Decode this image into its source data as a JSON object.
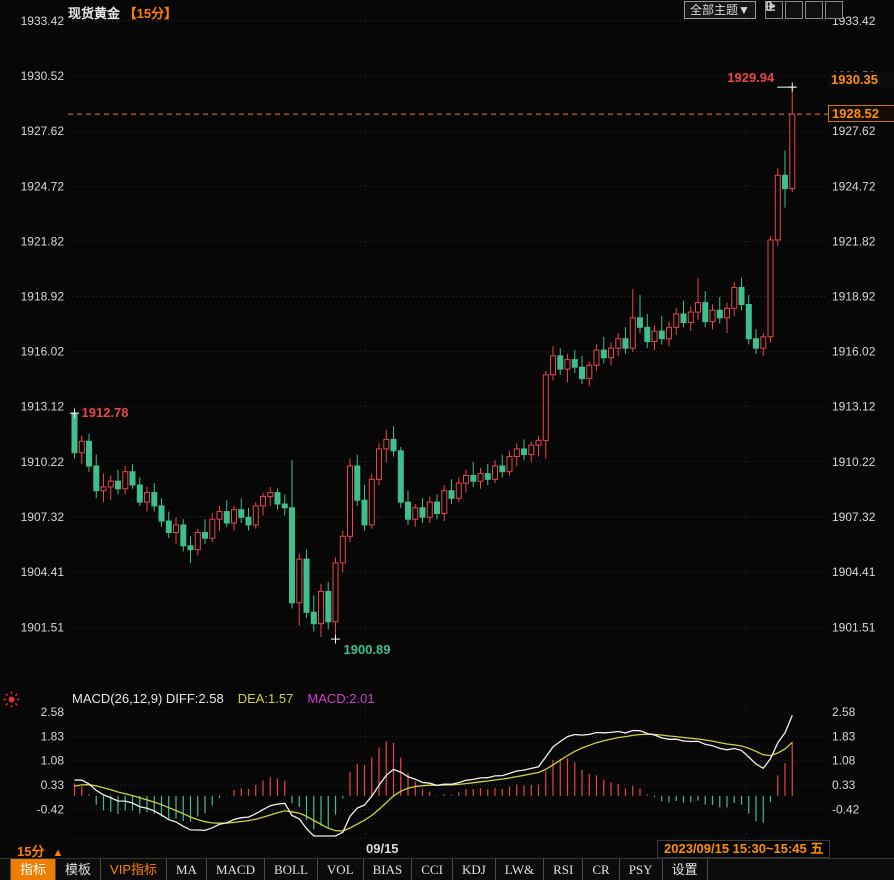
{
  "header": {
    "title": "现货黄金",
    "period_tag": "【15分】",
    "theme_button": "全部主题▼",
    "window_icons": [
      "move-crosshair-icon",
      "pane-axis-up-icon",
      "pane-axis-play-icon",
      "pane-exit-icon"
    ]
  },
  "price_axis": {
    "labels": [
      "1933.42",
      "1930.52",
      "1927.62",
      "1924.72",
      "1921.82",
      "1918.92",
      "1916.02",
      "1913.12",
      "1910.22",
      "1907.32",
      "1904.41",
      "1901.51"
    ]
  },
  "macd_axis": {
    "labels": [
      "2.58",
      "1.83",
      "1.08",
      "0.33",
      "-0.42"
    ]
  },
  "markers": {
    "price_marker": "1930.35",
    "last_price": "1928.52",
    "last_price_value": 1928.52
  },
  "annotations": {
    "open_label": "1912.78",
    "open_value": 1912.78,
    "low_label": "1900.89",
    "low_value": 1900.89,
    "high_label": "1929.94",
    "high_value": 1929.94
  },
  "macd_header": {
    "params_and_diff": "MACD(26,12,9) DIFF:2.58",
    "dea": "DEA:1.57",
    "macd": "MACD:2.01"
  },
  "footer": {
    "period": "15分",
    "arrow": "▲",
    "session_label": "09/15",
    "range": "2023/09/15 15:30~15:45 五"
  },
  "toolbar": {
    "tabs": [
      {
        "label": "指标",
        "style": "active"
      },
      {
        "label": "模板",
        "style": ""
      },
      {
        "label": "VIP指标",
        "style": "vip"
      },
      {
        "label": "MA",
        "style": ""
      },
      {
        "label": "MACD",
        "style": ""
      },
      {
        "label": "BOLL",
        "style": ""
      },
      {
        "label": "VOL",
        "style": ""
      },
      {
        "label": "BIAS",
        "style": ""
      },
      {
        "label": "CCI",
        "style": ""
      },
      {
        "label": "KDJ",
        "style": ""
      },
      {
        "label": "LW&",
        "style": ""
      },
      {
        "label": "RSI",
        "style": ""
      },
      {
        "label": "CR",
        "style": ""
      },
      {
        "label": "PSY",
        "style": ""
      },
      {
        "label": "设置",
        "style": ""
      }
    ]
  },
  "colors": {
    "up": "#e8464b",
    "down": "#3fbf8e",
    "accent": "#ff8200",
    "dashed_line": "#e88a00",
    "diff_line": "#f0f0f0",
    "dea_line": "#cdd13f",
    "macd_value": "#d23fd2",
    "grid": "#3d3d3d",
    "axis_text": "#d8d8d8",
    "background": "#070707"
  },
  "chart_data": {
    "type": "candlestick+macd",
    "symbol": "现货黄金",
    "interval": "15分",
    "x_session_label": "09/15",
    "price_axis_top": 1933.42,
    "price_axis_step": 2.9,
    "macd_axis_top": 2.58,
    "macd_axis_step": 0.75,
    "macd_summary": {
      "diff": 2.58,
      "dea": 1.57,
      "macd": 2.01
    },
    "open": 1912.78,
    "high": 1929.94,
    "low": 1900.89,
    "last": 1928.52,
    "session_lines_x": [
      365,
      747
    ],
    "candles": [
      [
        1912.78,
        1912.9,
        1910.4,
        1910.7
      ],
      [
        1910.7,
        1911.6,
        1910.1,
        1911.3
      ],
      [
        1911.3,
        1911.7,
        1909.7,
        1910.0
      ],
      [
        1910.0,
        1910.6,
        1908.3,
        1908.7
      ],
      [
        1908.7,
        1909.6,
        1908.1,
        1908.9
      ],
      [
        1908.9,
        1909.5,
        1908.2,
        1909.2
      ],
      [
        1909.2,
        1909.8,
        1908.5,
        1908.8
      ],
      [
        1908.8,
        1910.0,
        1908.5,
        1909.7
      ],
      [
        1909.7,
        1910.1,
        1908.8,
        1909.0
      ],
      [
        1909.0,
        1909.4,
        1907.9,
        1908.1
      ],
      [
        1908.1,
        1908.9,
        1907.6,
        1908.6
      ],
      [
        1908.6,
        1909.1,
        1907.6,
        1907.9
      ],
      [
        1907.9,
        1908.3,
        1906.8,
        1907.1
      ],
      [
        1907.1,
        1907.6,
        1906.2,
        1906.5
      ],
      [
        1906.5,
        1907.3,
        1905.9,
        1906.9
      ],
      [
        1906.9,
        1907.2,
        1905.5,
        1905.8
      ],
      [
        1905.8,
        1906.3,
        1904.9,
        1905.6
      ],
      [
        1905.6,
        1906.7,
        1905.3,
        1906.5
      ],
      [
        1906.5,
        1907.2,
        1905.9,
        1906.2
      ],
      [
        1906.2,
        1907.5,
        1906.0,
        1907.2
      ],
      [
        1907.2,
        1907.9,
        1906.6,
        1907.6
      ],
      [
        1907.6,
        1908.2,
        1906.8,
        1907.0
      ],
      [
        1907.0,
        1907.9,
        1906.6,
        1907.7
      ],
      [
        1907.7,
        1908.3,
        1907.0,
        1907.3
      ],
      [
        1907.3,
        1907.8,
        1906.6,
        1906.9
      ],
      [
        1906.9,
        1908.1,
        1906.7,
        1907.9
      ],
      [
        1907.9,
        1908.6,
        1907.4,
        1908.4
      ],
      [
        1908.4,
        1908.9,
        1907.9,
        1908.6
      ],
      [
        1908.6,
        1908.8,
        1907.7,
        1908.0
      ],
      [
        1908.0,
        1908.5,
        1907.4,
        1907.8
      ],
      [
        1907.8,
        1910.3,
        1902.5,
        1902.8
      ],
      [
        1902.8,
        1905.4,
        1901.6,
        1905.1
      ],
      [
        1905.1,
        1905.6,
        1902.0,
        1902.3
      ],
      [
        1902.3,
        1903.2,
        1901.3,
        1901.7
      ],
      [
        1901.7,
        1903.8,
        1901.0,
        1903.4
      ],
      [
        1903.4,
        1903.9,
        1901.4,
        1901.8
      ],
      [
        1901.8,
        1905.2,
        1900.89,
        1904.9
      ],
      [
        1904.9,
        1906.6,
        1904.4,
        1906.3
      ],
      [
        1906.3,
        1910.4,
        1906.0,
        1910.0
      ],
      [
        1910.0,
        1910.6,
        1907.9,
        1908.2
      ],
      [
        1908.2,
        1909.0,
        1906.6,
        1906.9
      ],
      [
        1906.9,
        1909.6,
        1906.7,
        1909.3
      ],
      [
        1909.3,
        1911.2,
        1909.0,
        1910.9
      ],
      [
        1910.9,
        1911.9,
        1910.2,
        1911.4
      ],
      [
        1911.4,
        1912.1,
        1910.5,
        1910.8
      ],
      [
        1910.8,
        1911.0,
        1907.8,
        1908.1
      ],
      [
        1908.1,
        1908.7,
        1906.9,
        1907.2
      ],
      [
        1907.2,
        1908.0,
        1906.8,
        1907.8
      ],
      [
        1907.8,
        1908.3,
        1907.0,
        1907.3
      ],
      [
        1907.3,
        1908.4,
        1907.0,
        1908.1
      ],
      [
        1908.1,
        1908.5,
        1907.2,
        1907.5
      ],
      [
        1907.5,
        1909.0,
        1907.1,
        1908.7
      ],
      [
        1908.7,
        1909.3,
        1908.0,
        1908.3
      ],
      [
        1908.3,
        1909.4,
        1908.1,
        1909.1
      ],
      [
        1909.1,
        1909.8,
        1908.6,
        1909.5
      ],
      [
        1909.5,
        1910.2,
        1908.9,
        1909.2
      ],
      [
        1909.2,
        1909.9,
        1908.8,
        1909.6
      ],
      [
        1909.6,
        1910.1,
        1909.0,
        1909.3
      ],
      [
        1909.3,
        1910.3,
        1909.1,
        1910.0
      ],
      [
        1910.0,
        1910.6,
        1909.4,
        1909.7
      ],
      [
        1909.7,
        1910.8,
        1909.5,
        1910.5
      ],
      [
        1910.5,
        1911.2,
        1910.0,
        1910.9
      ],
      [
        1910.9,
        1911.4,
        1910.3,
        1910.6
      ],
      [
        1910.6,
        1911.3,
        1910.2,
        1911.1
      ],
      [
        1911.1,
        1911.6,
        1910.5,
        1911.35
      ],
      [
        1911.35,
        1915.0,
        1910.4,
        1914.8
      ],
      [
        1914.8,
        1916.3,
        1914.5,
        1915.8
      ],
      [
        1915.8,
        1916.2,
        1914.8,
        1915.1
      ],
      [
        1915.1,
        1915.9,
        1914.4,
        1915.6
      ],
      [
        1915.6,
        1916.1,
        1914.9,
        1915.2
      ],
      [
        1915.2,
        1915.8,
        1914.3,
        1914.6
      ],
      [
        1914.6,
        1915.5,
        1914.2,
        1915.3
      ],
      [
        1915.3,
        1916.4,
        1915.0,
        1916.1
      ],
      [
        1916.1,
        1916.8,
        1915.4,
        1915.7
      ],
      [
        1915.7,
        1916.5,
        1915.3,
        1916.2
      ],
      [
        1916.2,
        1917.0,
        1915.8,
        1916.7
      ],
      [
        1916.7,
        1917.3,
        1915.9,
        1916.2
      ],
      [
        1916.2,
        1919.3,
        1916.0,
        1917.8
      ],
      [
        1917.8,
        1919.0,
        1917.0,
        1917.3
      ],
      [
        1917.3,
        1918.0,
        1916.2,
        1916.55
      ],
      [
        1916.55,
        1917.4,
        1916.1,
        1917.1
      ],
      [
        1917.1,
        1917.9,
        1916.4,
        1916.7
      ],
      [
        1916.7,
        1917.6,
        1916.3,
        1917.3
      ],
      [
        1917.3,
        1918.3,
        1916.9,
        1918.0
      ],
      [
        1918.0,
        1918.7,
        1917.3,
        1917.55
      ],
      [
        1917.55,
        1918.4,
        1917.1,
        1918.1
      ],
      [
        1918.1,
        1919.9,
        1917.7,
        1918.6
      ],
      [
        1918.6,
        1919.2,
        1917.3,
        1917.6
      ],
      [
        1917.6,
        1918.5,
        1917.2,
        1918.2
      ],
      [
        1918.2,
        1918.9,
        1917.5,
        1917.8
      ],
      [
        1917.8,
        1918.6,
        1917.0,
        1918.3
      ],
      [
        1918.3,
        1919.7,
        1917.9,
        1919.4
      ],
      [
        1919.4,
        1919.9,
        1918.2,
        1918.5
      ],
      [
        1918.5,
        1919.0,
        1916.4,
        1916.7
      ],
      [
        1916.7,
        1917.2,
        1915.9,
        1916.2
      ],
      [
        1916.2,
        1917.0,
        1915.8,
        1916.8
      ],
      [
        1916.8,
        1922.1,
        1916.5,
        1921.9
      ],
      [
        1921.9,
        1925.7,
        1921.6,
        1925.3
      ],
      [
        1925.3,
        1926.6,
        1923.6,
        1924.6
      ],
      [
        1924.6,
        1929.94,
        1924.4,
        1928.52
      ]
    ]
  }
}
